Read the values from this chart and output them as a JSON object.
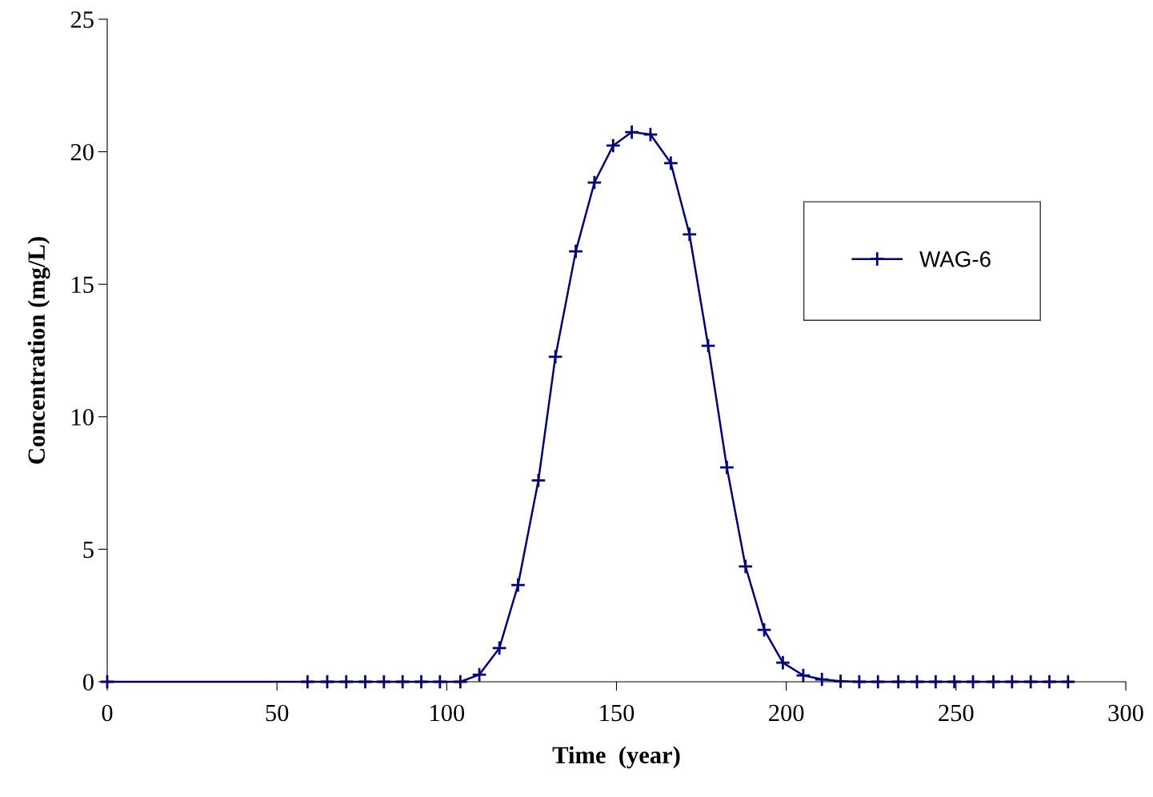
{
  "chart_data": {
    "type": "line",
    "xlabel": "Time  (year)",
    "ylabel": "Concentration (mg/L)",
    "xlim": [
      0,
      300
    ],
    "xticks": [
      0,
      50,
      100,
      150,
      200,
      250,
      300
    ],
    "ylim": [
      0,
      25
    ],
    "yticks": [
      0,
      5,
      10,
      15,
      20,
      25
    ],
    "grid": false,
    "legend": "top right",
    "marker": "cross",
    "line_style": "solid",
    "series": [
      {
        "name": "WAG-6",
        "color": "#000080",
        "x": [
          0,
          59,
          64.8,
          70.4,
          76,
          81.5,
          87,
          92.5,
          98,
          104,
          109.6,
          115.5,
          121,
          127,
          132,
          138,
          143.5,
          149,
          154.5,
          160,
          166,
          171.5,
          177,
          182.5,
          188,
          193.5,
          199,
          205,
          210.5,
          216,
          221.5,
          227,
          233,
          238.5,
          244,
          249.5,
          255,
          261,
          266.5,
          272,
          277.5,
          283
        ],
        "values": [
          0,
          0,
          0,
          0,
          0,
          0,
          0,
          0,
          0,
          0,
          0.27,
          1.27,
          3.65,
          7.6,
          12.26,
          16.24,
          18.84,
          20.23,
          20.74,
          20.65,
          19.57,
          16.88,
          12.68,
          8.09,
          4.35,
          1.96,
          0.72,
          0.24,
          0.09,
          0.02,
          0,
          0,
          0,
          0,
          0,
          0,
          0,
          0,
          0,
          0,
          0,
          0
        ]
      }
    ]
  }
}
